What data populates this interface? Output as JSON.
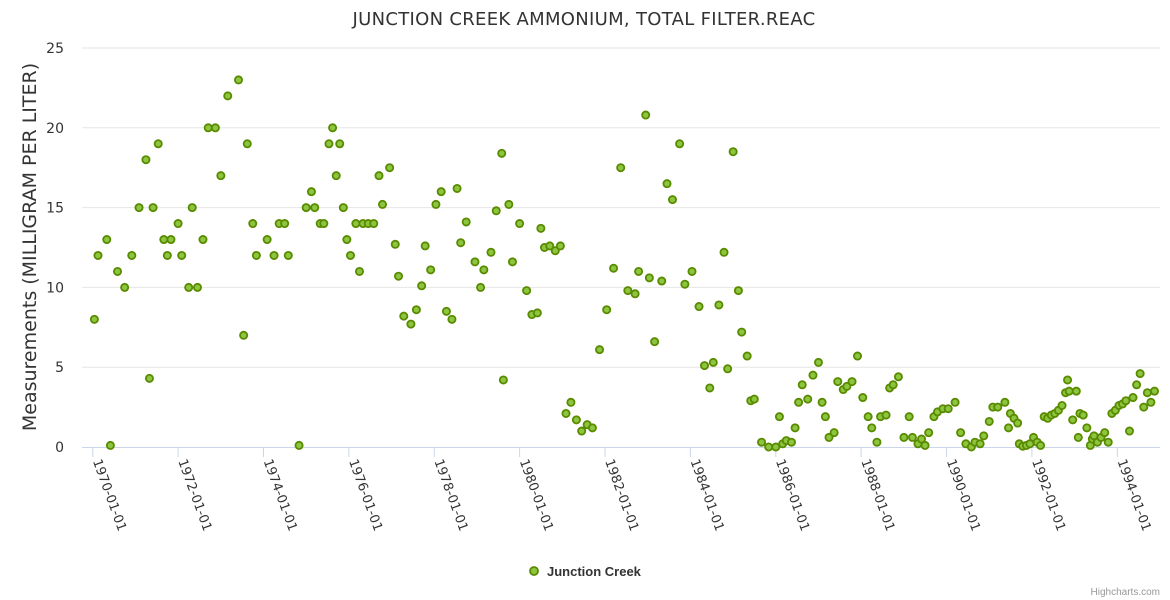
{
  "chart_data": {
    "type": "scatter",
    "title": "JUNCTION CREEK AMMONIUM, TOTAL FILTER.REAC",
    "ylabel": "Measurements (MILLIGRAM PER LITER)",
    "xlabel": "",
    "x_axis": "datetime",
    "xlim": [
      "1969-10-01",
      "1995-01-01"
    ],
    "ylim": [
      0,
      25
    ],
    "yticks": [
      0,
      5,
      10,
      15,
      20,
      25
    ],
    "xticks": [
      "1970-01-01",
      "1972-01-01",
      "1974-01-01",
      "1976-01-01",
      "1978-01-01",
      "1980-01-01",
      "1982-01-01",
      "1984-01-01",
      "1986-01-01",
      "1988-01-01",
      "1990-01-01",
      "1992-01-01",
      "1994-01-01"
    ],
    "grid": true,
    "legend_position": "bottom-center",
    "marker_fill": "#8cc63f",
    "marker_stroke": "#5a8a00",
    "series": [
      {
        "name": "Junction Creek",
        "points": [
          [
            "1970-01-15",
            8
          ],
          [
            "1970-02-15",
            12
          ],
          [
            "1970-05-01",
            13
          ],
          [
            "1970-06-01",
            0.1
          ],
          [
            "1970-08-01",
            11
          ],
          [
            "1970-10-01",
            10
          ],
          [
            "1970-12-01",
            12
          ],
          [
            "1971-02-01",
            15
          ],
          [
            "1971-04-01",
            18
          ],
          [
            "1971-05-01",
            4.3
          ],
          [
            "1971-06-01",
            15
          ],
          [
            "1971-07-15",
            19
          ],
          [
            "1971-09-01",
            13
          ],
          [
            "1971-10-01",
            12
          ],
          [
            "1971-11-01",
            13
          ],
          [
            "1972-01-01",
            14
          ],
          [
            "1972-02-01",
            12
          ],
          [
            "1972-04-01",
            10
          ],
          [
            "1972-05-01",
            15
          ],
          [
            "1972-06-15",
            10
          ],
          [
            "1972-08-01",
            13
          ],
          [
            "1972-09-15",
            20
          ],
          [
            "1972-11-15",
            20
          ],
          [
            "1973-01-01",
            17
          ],
          [
            "1973-03-01",
            22
          ],
          [
            "1973-06-01",
            23
          ],
          [
            "1973-07-15",
            7
          ],
          [
            "1973-08-15",
            19
          ],
          [
            "1973-10-01",
            14
          ],
          [
            "1973-11-01",
            12
          ],
          [
            "1974-02-01",
            13
          ],
          [
            "1974-04-01",
            12
          ],
          [
            "1974-05-15",
            14
          ],
          [
            "1974-07-01",
            14
          ],
          [
            "1974-08-01",
            12
          ],
          [
            "1974-11-01",
            0.1
          ],
          [
            "1975-01-01",
            15
          ],
          [
            "1975-02-15",
            16
          ],
          [
            "1975-03-15",
            15
          ],
          [
            "1975-05-01",
            14
          ],
          [
            "1975-06-01",
            14
          ],
          [
            "1975-07-15",
            19
          ],
          [
            "1975-08-15",
            20
          ],
          [
            "1975-09-15",
            17
          ],
          [
            "1975-10-15",
            19
          ],
          [
            "1975-11-15",
            15
          ],
          [
            "1975-12-15",
            13
          ],
          [
            "1976-01-15",
            12
          ],
          [
            "1976-03-01",
            14
          ],
          [
            "1976-04-01",
            11
          ],
          [
            "1976-05-01",
            14
          ],
          [
            "1976-06-15",
            14
          ],
          [
            "1976-08-01",
            14
          ],
          [
            "1976-09-15",
            17
          ],
          [
            "1976-10-15",
            15.2
          ],
          [
            "1976-12-15",
            17.5
          ],
          [
            "1977-02-01",
            12.7
          ],
          [
            "1977-03-01",
            10.7
          ],
          [
            "1977-04-15",
            8.2
          ],
          [
            "1977-06-15",
            7.7
          ],
          [
            "1977-08-01",
            8.6
          ],
          [
            "1977-09-15",
            10.1
          ],
          [
            "1977-10-15",
            12.6
          ],
          [
            "1977-12-01",
            11.1
          ],
          [
            "1978-01-15",
            15.2
          ],
          [
            "1978-03-01",
            16
          ],
          [
            "1978-04-15",
            8.5
          ],
          [
            "1978-06-01",
            8
          ],
          [
            "1978-07-15",
            16.2
          ],
          [
            "1978-08-15",
            12.8
          ],
          [
            "1978-10-01",
            14.1
          ],
          [
            "1978-12-15",
            11.6
          ],
          [
            "1979-02-01",
            10
          ],
          [
            "1979-03-01",
            11.1
          ],
          [
            "1979-05-01",
            12.2
          ],
          [
            "1979-06-15",
            14.8
          ],
          [
            "1979-08-01",
            18.4
          ],
          [
            "1979-08-15",
            4.2
          ],
          [
            "1979-10-01",
            15.2
          ],
          [
            "1979-11-01",
            11.6
          ],
          [
            "1980-01-01",
            14
          ],
          [
            "1980-03-01",
            9.8
          ],
          [
            "1980-04-15",
            8.3
          ],
          [
            "1980-06-01",
            8.4
          ],
          [
            "1980-07-01",
            13.7
          ],
          [
            "1980-08-01",
            12.5
          ],
          [
            "1980-09-15",
            12.6
          ],
          [
            "1980-11-01",
            12.3
          ],
          [
            "1980-12-15",
            12.6
          ],
          [
            "1981-02-01",
            2.1
          ],
          [
            "1981-03-15",
            2.8
          ],
          [
            "1981-05-01",
            1.7
          ],
          [
            "1981-06-15",
            1
          ],
          [
            "1981-08-01",
            1.4
          ],
          [
            "1981-09-15",
            1.2
          ],
          [
            "1981-11-15",
            6.1
          ],
          [
            "1982-01-15",
            8.6
          ],
          [
            "1982-03-15",
            11.2
          ],
          [
            "1982-05-15",
            17.5
          ],
          [
            "1982-07-15",
            9.8
          ],
          [
            "1982-09-15",
            9.6
          ],
          [
            "1982-10-15",
            11
          ],
          [
            "1982-12-15",
            20.8
          ],
          [
            "1983-01-15",
            10.6
          ],
          [
            "1983-03-01",
            6.6
          ],
          [
            "1983-05-01",
            10.4
          ],
          [
            "1983-06-15",
            16.5
          ],
          [
            "1983-08-01",
            15.5
          ],
          [
            "1983-10-01",
            19
          ],
          [
            "1983-11-15",
            10.2
          ],
          [
            "1984-01-15",
            11
          ],
          [
            "1984-03-15",
            8.8
          ],
          [
            "1984-05-01",
            5.1
          ],
          [
            "1984-06-15",
            3.7
          ],
          [
            "1984-07-15",
            5.3
          ],
          [
            "1984-09-01",
            8.9
          ],
          [
            "1984-10-15",
            12.2
          ],
          [
            "1984-11-15",
            4.9
          ],
          [
            "1985-01-01",
            18.5
          ],
          [
            "1985-02-15",
            9.8
          ],
          [
            "1985-03-15",
            7.2
          ],
          [
            "1985-05-01",
            5.7
          ],
          [
            "1985-06-01",
            2.9
          ],
          [
            "1985-07-01",
            3
          ],
          [
            "1985-09-01",
            0.3
          ],
          [
            "1985-11-01",
            0
          ],
          [
            "1986-01-01",
            0
          ],
          [
            "1986-02-01",
            1.9
          ],
          [
            "1986-03-01",
            0.2
          ],
          [
            "1986-04-01",
            0.4
          ],
          [
            "1986-05-15",
            0.3
          ],
          [
            "1986-06-15",
            1.2
          ],
          [
            "1986-07-15",
            2.8
          ],
          [
            "1986-08-15",
            3.9
          ],
          [
            "1986-10-01",
            3
          ],
          [
            "1986-11-15",
            4.5
          ],
          [
            "1987-01-01",
            5.3
          ],
          [
            "1987-02-01",
            2.8
          ],
          [
            "1987-03-01",
            1.9
          ],
          [
            "1987-04-01",
            0.6
          ],
          [
            "1987-05-15",
            0.9
          ],
          [
            "1987-06-15",
            4.1
          ],
          [
            "1987-08-01",
            3.6
          ],
          [
            "1987-09-01",
            3.8
          ],
          [
            "1987-10-15",
            4.1
          ],
          [
            "1987-12-01",
            5.7
          ],
          [
            "1988-01-15",
            3.1
          ],
          [
            "1988-03-01",
            1.9
          ],
          [
            "1988-04-01",
            1.2
          ],
          [
            "1988-05-15",
            0.3
          ],
          [
            "1988-06-15",
            1.9
          ],
          [
            "1988-08-01",
            2
          ],
          [
            "1988-09-01",
            3.7
          ],
          [
            "1988-10-01",
            3.9
          ],
          [
            "1988-11-15",
            4.4
          ],
          [
            "1989-01-01",
            0.6
          ],
          [
            "1989-02-15",
            1.9
          ],
          [
            "1989-03-15",
            0.6
          ],
          [
            "1989-05-01",
            0.2
          ],
          [
            "1989-06-01",
            0.5
          ],
          [
            "1989-07-01",
            0.1
          ],
          [
            "1989-08-01",
            0.9
          ],
          [
            "1989-09-15",
            1.9
          ],
          [
            "1989-10-15",
            2.2
          ],
          [
            "1989-12-01",
            2.4
          ],
          [
            "1990-01-15",
            2.4
          ],
          [
            "1990-03-15",
            2.8
          ],
          [
            "1990-05-01",
            0.9
          ],
          [
            "1990-06-15",
            0.2
          ],
          [
            "1990-08-01",
            0
          ],
          [
            "1990-09-01",
            0.3
          ],
          [
            "1990-10-15",
            0.2
          ],
          [
            "1990-11-15",
            0.7
          ],
          [
            "1991-01-01",
            1.6
          ],
          [
            "1991-02-01",
            2.5
          ],
          [
            "1991-03-15",
            2.5
          ],
          [
            "1991-05-15",
            2.8
          ],
          [
            "1991-06-15",
            1.2
          ],
          [
            "1991-07-01",
            2.1
          ],
          [
            "1991-08-01",
            1.8
          ],
          [
            "1991-09-01",
            1.5
          ],
          [
            "1991-09-15",
            0.2
          ],
          [
            "1991-10-15",
            0.05
          ],
          [
            "1991-11-15",
            0.1
          ],
          [
            "1991-12-15",
            0.2
          ],
          [
            "1992-01-15",
            0.6
          ],
          [
            "1992-02-15",
            0.3
          ],
          [
            "1992-03-15",
            0.1
          ],
          [
            "1992-04-15",
            1.9
          ],
          [
            "1992-05-15",
            1.8
          ],
          [
            "1992-06-15",
            2
          ],
          [
            "1992-07-15",
            2.1
          ],
          [
            "1992-08-15",
            2.3
          ],
          [
            "1992-09-15",
            2.6
          ],
          [
            "1992-10-15",
            3.4
          ],
          [
            "1992-11-01",
            4.2
          ],
          [
            "1992-11-15",
            3.5
          ],
          [
            "1992-12-15",
            1.7
          ],
          [
            "1993-01-15",
            3.5
          ],
          [
            "1993-02-01",
            0.6
          ],
          [
            "1993-02-15",
            2.1
          ],
          [
            "1993-03-15",
            2
          ],
          [
            "1993-04-15",
            1.2
          ],
          [
            "1993-05-15",
            0.1
          ],
          [
            "1993-06-01",
            0.5
          ],
          [
            "1993-06-15",
            0.7
          ],
          [
            "1993-07-15",
            0.3
          ],
          [
            "1993-08-15",
            0.6
          ],
          [
            "1993-09-15",
            0.9
          ],
          [
            "1993-10-15",
            0.3
          ],
          [
            "1993-11-15",
            2.1
          ],
          [
            "1993-12-15",
            2.3
          ],
          [
            "1994-01-15",
            2.6
          ],
          [
            "1994-02-15",
            2.7
          ],
          [
            "1994-03-15",
            2.9
          ],
          [
            "1994-04-15",
            1
          ],
          [
            "1994-05-15",
            3.1
          ],
          [
            "1994-06-15",
            3.9
          ],
          [
            "1994-07-15",
            4.6
          ],
          [
            "1994-08-15",
            2.5
          ],
          [
            "1994-09-15",
            3.4
          ],
          [
            "1994-10-15",
            2.8
          ],
          [
            "1994-11-15",
            3.5
          ]
        ]
      }
    ],
    "credits": "Highcharts.com"
  }
}
